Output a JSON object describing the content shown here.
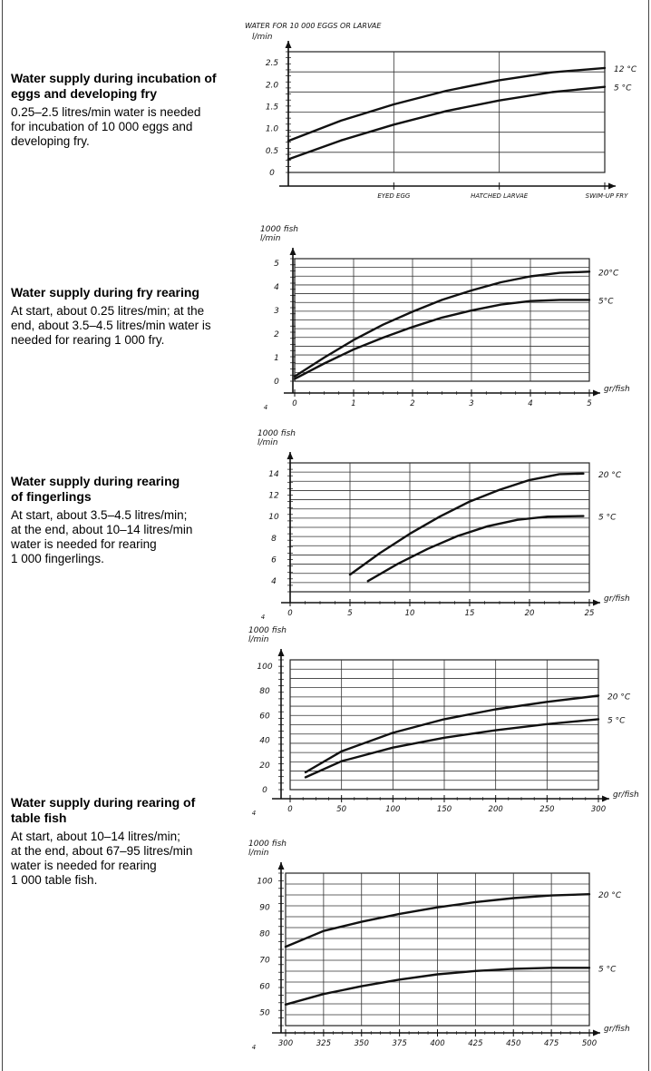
{
  "sections": [
    {
      "heading": "Water supply during incubation of eggs and developing fry",
      "text": "0.25–2.5 litres/min water is needed\nfor incubation of 10 000 eggs and\ndeveloping fry."
    },
    {
      "heading": "Water supply during fry rearing",
      "text": "At start, about 0.25 litres/min; at the\nend, about 3.5–4.5 litres/min water is\nneeded for rearing 1 000 fry."
    },
    {
      "heading": "Water supply during rearing\nof fingerlings",
      "text": "At start, about 3.5–4.5 litres/min;\nat the end, about 10–14 litres/min\nwater is needed for rearing\n1 000 fingerlings."
    },
    {
      "heading": "Water supply during rearing of\ntable fish",
      "text": "At start, about 10–14 litres/min;\nat the end, about 67–95 litres/min\nwater is needed for rearing\n1 000 table fish."
    }
  ],
  "chart_data": [
    {
      "type": "line",
      "ylabel": "WATER FOR 10 000 EGGS OR LARVAE l/min",
      "yticks": [
        "0",
        "0.5",
        "1.0",
        "1.5",
        "2.0",
        "2.5"
      ],
      "ylim": [
        0,
        2.75
      ],
      "xcategories": [
        "EYED EGG",
        "HATCHED LARVAE",
        "SWIM-UP FRY"
      ],
      "xlim": [
        0,
        3
      ],
      "series": [
        {
          "name": "12 °C",
          "x": [
            0,
            0.5,
            1,
            1.5,
            2,
            2.5,
            3
          ],
          "y": [
            0.72,
            1.18,
            1.55,
            1.86,
            2.1,
            2.28,
            2.38
          ]
        },
        {
          "name": "5 °C",
          "x": [
            0,
            0.5,
            1,
            1.5,
            2,
            2.5,
            3
          ],
          "y": [
            0.3,
            0.73,
            1.09,
            1.4,
            1.64,
            1.83,
            1.95
          ]
        }
      ]
    },
    {
      "type": "line",
      "ylabel": "1000 fish l/min",
      "yticks": [
        "0",
        "1",
        "2",
        "3",
        "4",
        "5"
      ],
      "ylim": [
        0,
        5.2
      ],
      "xticks": [
        "0",
        "1",
        "2",
        "3",
        "4",
        "5"
      ],
      "xlim": [
        0,
        5
      ],
      "xlabel": "gr/fish",
      "series": [
        {
          "name": "20°C",
          "x": [
            0,
            0.5,
            1,
            1.5,
            2,
            2.5,
            3,
            3.5,
            4,
            4.5,
            5
          ],
          "y": [
            0.2,
            1.0,
            1.75,
            2.4,
            2.95,
            3.45,
            3.85,
            4.2,
            4.45,
            4.6,
            4.65
          ]
        },
        {
          "name": "5°C",
          "x": [
            0,
            0.5,
            1,
            1.5,
            2,
            2.5,
            3,
            3.5,
            4,
            4.5,
            5
          ],
          "y": [
            0.1,
            0.75,
            1.35,
            1.85,
            2.3,
            2.7,
            3.0,
            3.25,
            3.4,
            3.45,
            3.45
          ]
        }
      ]
    },
    {
      "type": "line",
      "ylabel": "1000 fish l/min",
      "yticks": [
        "4",
        "6",
        "8",
        "10",
        "12",
        "14"
      ],
      "ylim": [
        3,
        15
      ],
      "xticks": [
        "0",
        "5",
        "10",
        "15",
        "20",
        "25"
      ],
      "xlim": [
        0,
        25
      ],
      "xlabel": "gr/fish",
      "series": [
        {
          "name": "20 °C",
          "x": [
            5,
            7.5,
            10,
            12.5,
            15,
            17.5,
            20,
            22.5,
            24.5
          ],
          "y": [
            4.6,
            6.6,
            8.4,
            10.0,
            11.4,
            12.5,
            13.4,
            13.95,
            14.0
          ]
        },
        {
          "name": "5 °C",
          "x": [
            6.5,
            9,
            11.5,
            14,
            16.5,
            19,
            21.5,
            24.5
          ],
          "y": [
            4.0,
            5.6,
            7.0,
            8.2,
            9.1,
            9.7,
            10.0,
            10.05
          ]
        }
      ]
    },
    {
      "type": "line",
      "ylabel": "1000 fish l/min",
      "yticks": [
        "0",
        "20",
        "40",
        "60",
        "80",
        "100"
      ],
      "ylim": [
        0,
        105
      ],
      "xticks": [
        "0",
        "50",
        "100",
        "150",
        "200",
        "250",
        "300"
      ],
      "xlim": [
        0,
        300
      ],
      "xlabel": "gr/fish",
      "series": [
        {
          "name": "20 °C",
          "x": [
            15,
            50,
            100,
            150,
            200,
            250,
            300
          ],
          "y": [
            14,
            31,
            46,
            57,
            65,
            71,
            76
          ]
        },
        {
          "name": "5 °C",
          "x": [
            15,
            50,
            100,
            150,
            200,
            250,
            300
          ],
          "y": [
            10,
            23,
            34,
            42,
            48,
            53,
            57
          ]
        }
      ]
    },
    {
      "type": "line",
      "ylabel": "1000 fish l/min",
      "yticks": [
        "50",
        "60",
        "70",
        "80",
        "90",
        "100"
      ],
      "ylim": [
        45,
        103
      ],
      "xticks": [
        "300",
        "325",
        "350",
        "375",
        "400",
        "425",
        "450",
        "475",
        "500"
      ],
      "xlim": [
        300,
        500
      ],
      "xlabel": "gr/fish",
      "series": [
        {
          "name": "20 °C",
          "x": [
            300,
            325,
            350,
            375,
            400,
            425,
            450,
            475,
            500
          ],
          "y": [
            75,
            81,
            84.5,
            87.5,
            90,
            92,
            93.5,
            94.5,
            95
          ]
        },
        {
          "name": "5 °C",
          "x": [
            300,
            325,
            350,
            375,
            400,
            425,
            450,
            475,
            500
          ],
          "y": [
            53,
            57,
            60,
            62.5,
            64.5,
            65.8,
            66.6,
            67,
            67
          ]
        }
      ]
    }
  ]
}
